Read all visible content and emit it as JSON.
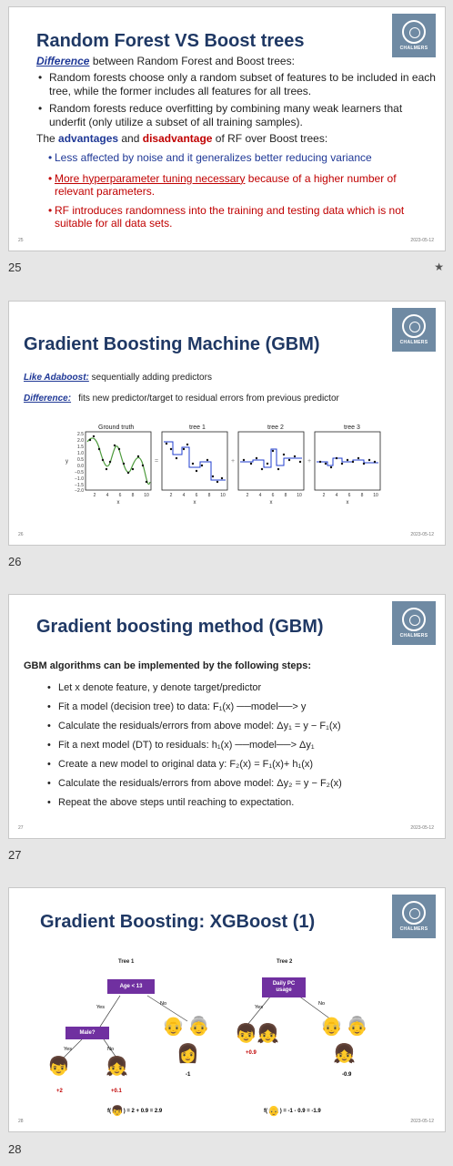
{
  "slides": [
    {
      "number": "25",
      "footer_num": "25",
      "date": "2023-05-12",
      "title": "Random Forest VS Boost trees",
      "diff_label": "Difference",
      "diff_rest": " between Random Forest and Boost trees:",
      "bullets": [
        "Random forests choose only a random subset of features to be included in each tree, while the former includes all features for all trees.",
        "Random forests reduce overfitting by combining many weak learners that underfit (only utilize a subset of all training samples)."
      ],
      "adv_pre": "The ",
      "adv_word": "advantages",
      "adv_mid": " and ",
      "disadv_word": "disadvantage",
      "adv_post": " of RF over Boost trees:",
      "adv_item": "Less affected by noise and it generalizes better reducing variance",
      "disadv1_underlined": "More hyperparameter tuning necessary",
      "disadv1_rest": " because of a higher number of relevant parameters.",
      "disadv2": "RF introduces randomness into the training and testing data which is not suitable for all data sets."
    },
    {
      "number": "26",
      "footer_num": "26",
      "date": "2023-05-12",
      "title": "Gradient Boosting Machine (GBM)",
      "like_label": "Like Adaboost:",
      "like_rest": " sequentially adding predictors",
      "diff_label": "Difference:",
      "diff_rest": "fits new predictor/target to residual errors from previous predictor",
      "panels": [
        "Ground truth",
        "tree 1",
        "tree 2",
        "tree 3"
      ],
      "yticks": [
        "2.5",
        "2.0",
        "1.5",
        "1.0",
        "0.5",
        "0.0",
        "−0.5",
        "−1.0",
        "−1.5",
        "−2.0"
      ],
      "xticks": [
        "2",
        "4",
        "6",
        "8",
        "10"
      ],
      "xlabel": "x",
      "ylabel": "y",
      "ops": [
        "=",
        "+",
        "+"
      ]
    },
    {
      "number": "27",
      "footer_num": "27",
      "date": "2023-05-12",
      "title": "Gradient boosting method (GBM)",
      "intro": "GBM algorithms can be implemented by the following steps:",
      "steps": [
        "Let x denote feature, y denote target/predictor",
        "Fit a model (decision tree) to data:  F₁(x) ──model──> y",
        "Calculate the residuals/errors from above model: Δy₁ = y − F₁(x)",
        "Fit a next model (DT) to residuals: h₁(x) ──model──> Δy₁",
        "Create a new model to original data y: F₂(x) = F₁(x)+ h₁(x)",
        "Calculate the residuals/errors from above model: Δy₂ = y − F₂(x)",
        "Repeat the above steps until reaching to expectation."
      ]
    },
    {
      "number": "28",
      "footer_num": "28",
      "date": "2023-05-12",
      "title": "Gradient Boosting: XGBoost (1)",
      "tree1_label": "Tree 1",
      "tree2_label": "Tree 2",
      "node_age": "Age < 13",
      "node_male": "Male?",
      "node_pc": "Daily PC usage",
      "yes": "Yes",
      "no": "No",
      "v_plus2": "+2",
      "v_plus01": "+0.1",
      "v_minus1": "-1",
      "v_plus09": "+0.9",
      "v_minus09": "-0.9",
      "f1": ") = 2 + 0.9 = 2.9",
      "f2": ") = -1 - 0.9 = -1.9",
      "f_pre": "f(",
      "colors": {
        "node": "#7030a0",
        "value": "#c00000"
      }
    }
  ],
  "logo_text": "CHALMERS"
}
